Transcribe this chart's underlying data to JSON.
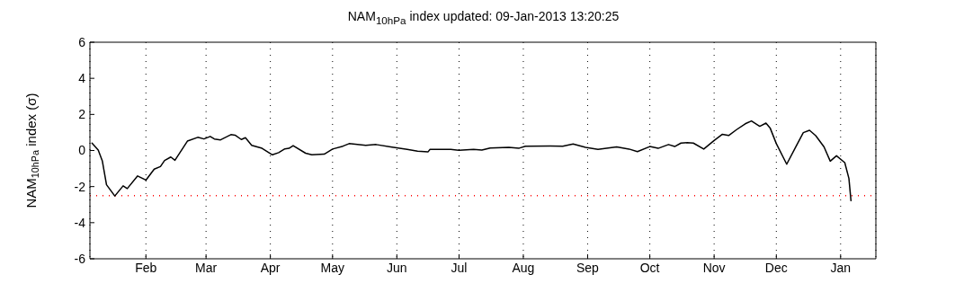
{
  "chart_data": {
    "type": "line",
    "title": "NAM$_{10hPa}$ index updated: 09-Jan-2013 13:20:25",
    "ylabel": "NAM$_{10hPa}$ index (σ)",
    "x": [
      "2012-01-06",
      "2012-01-09",
      "2012-01-11",
      "2012-01-13",
      "2012-01-17",
      "2012-01-21",
      "2012-01-23",
      "2012-01-28",
      "2012-02-01",
      "2012-02-05",
      "2012-02-08",
      "2012-02-10",
      "2012-02-13",
      "2012-02-15",
      "2012-02-21",
      "2012-02-26",
      "2012-02-29",
      "2012-03-03",
      "2012-03-05",
      "2012-03-08",
      "2012-03-13",
      "2012-03-15",
      "2012-03-18",
      "2012-03-20",
      "2012-03-23",
      "2012-03-28",
      "2012-04-02",
      "2012-04-05",
      "2012-04-08",
      "2012-04-10",
      "2012-04-12",
      "2012-04-18",
      "2012-04-21",
      "2012-04-27",
      "2012-05-01",
      "2012-05-06",
      "2012-05-09",
      "2012-05-17",
      "2012-05-22",
      "2012-05-29",
      "2012-06-06",
      "2012-06-11",
      "2012-06-16",
      "2012-06-17",
      "2012-06-27",
      "2012-07-01",
      "2012-07-08",
      "2012-07-12",
      "2012-07-16",
      "2012-07-25",
      "2012-07-30",
      "2012-08-02",
      "2012-08-14",
      "2012-08-20",
      "2012-08-25",
      "2012-08-31",
      "2012-09-06",
      "2012-09-15",
      "2012-09-21",
      "2012-09-25",
      "2012-10-01",
      "2012-10-05",
      "2012-10-10",
      "2012-10-13",
      "2012-10-16",
      "2012-10-19",
      "2012-10-22",
      "2012-10-27",
      "2012-11-01",
      "2012-11-05",
      "2012-11-08",
      "2012-11-12",
      "2012-11-16",
      "2012-11-19",
      "2012-11-23",
      "2012-11-26",
      "2012-11-28",
      "2012-12-01",
      "2012-12-06",
      "2012-12-10",
      "2012-12-14",
      "2012-12-17",
      "2012-12-20",
      "2012-12-24",
      "2012-12-27",
      "2012-12-30",
      "2013-01-03",
      "2013-01-05",
      "2013-01-06"
    ],
    "series": [
      {
        "color": "#000000",
        "values": [
          0.41,
          0.03,
          -0.59,
          -1.9,
          -2.52,
          -1.96,
          -2.11,
          -1.41,
          -1.64,
          -1.03,
          -0.89,
          -0.55,
          -0.36,
          -0.54,
          0.52,
          0.73,
          0.64,
          0.78,
          0.64,
          0.59,
          0.88,
          0.85,
          0.61,
          0.71,
          0.29,
          0.12,
          -0.24,
          -0.12,
          0.09,
          0.12,
          0.27,
          -0.15,
          -0.24,
          -0.2,
          0.08,
          0.24,
          0.38,
          0.29,
          0.33,
          0.2,
          0.06,
          -0.04,
          -0.08,
          0.06,
          0.06,
          0.01,
          0.06,
          0.03,
          0.14,
          0.18,
          0.13,
          0.24,
          0.25,
          0.24,
          0.36,
          0.17,
          0.06,
          0.2,
          0.08,
          -0.06,
          0.22,
          0.12,
          0.33,
          0.22,
          0.41,
          0.43,
          0.41,
          0.08,
          0.55,
          0.9,
          0.83,
          1.17,
          1.48,
          1.64,
          1.34,
          1.52,
          1.25,
          0.38,
          -0.76,
          0.12,
          0.99,
          1.12,
          0.82,
          0.2,
          -0.59,
          -0.29,
          -0.67,
          -1.55,
          -2.78
        ]
      }
    ],
    "xlim": [
      "2012-01-05",
      "2013-01-18"
    ],
    "xticks": [
      {
        "value": "2012-02-01",
        "label": "Feb"
      },
      {
        "value": "2012-03-01",
        "label": "Mar"
      },
      {
        "value": "2012-04-01",
        "label": "Apr"
      },
      {
        "value": "2012-05-01",
        "label": "May"
      },
      {
        "value": "2012-06-01",
        "label": "Jun"
      },
      {
        "value": "2012-07-01",
        "label": "Jul"
      },
      {
        "value": "2012-08-01",
        "label": "Aug"
      },
      {
        "value": "2012-09-01",
        "label": "Sep"
      },
      {
        "value": "2012-10-01",
        "label": "Oct"
      },
      {
        "value": "2012-11-01",
        "label": "Nov"
      },
      {
        "value": "2012-12-01",
        "label": "Dec"
      },
      {
        "value": "2013-01-01",
        "label": "Jan"
      }
    ],
    "ylim": [
      -6,
      6
    ],
    "yticks": [
      -6,
      -4,
      -2,
      0,
      2,
      4,
      6
    ],
    "grid": "x",
    "line_style": "solid",
    "marker": "none",
    "legend": false,
    "ref_lines": [
      {
        "axis": "y",
        "value": -2.5,
        "color": "#ff0000",
        "line_style": "dotted"
      }
    ]
  }
}
